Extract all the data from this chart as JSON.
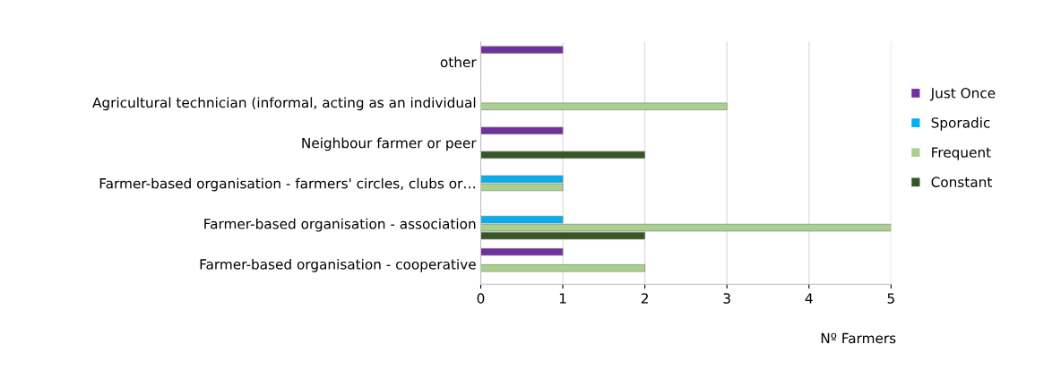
{
  "chart_data": {
    "type": "bar",
    "orientation": "horizontal",
    "xlabel": "Nº Farmers",
    "categories": [
      "other",
      "Agricultural technician (informal, acting as an individual",
      "Neighbour farmer or peer",
      "Farmer-based organisation - farmers' circles, clubs or…",
      "Farmer-based organisation - association",
      "Farmer-based organisation - cooperative"
    ],
    "series": [
      {
        "name": "Just Once",
        "color": "#7030a0",
        "values": [
          1,
          null,
          1,
          null,
          null,
          1
        ]
      },
      {
        "name": "Sporadic",
        "color": "#00b0f0",
        "values": [
          null,
          null,
          null,
          1,
          1,
          null
        ]
      },
      {
        "name": "Frequent",
        "color": "#a9d18e",
        "values": [
          null,
          3,
          null,
          1,
          5,
          2
        ]
      },
      {
        "name": "Constant",
        "color": "#375623",
        "values": [
          null,
          null,
          2,
          null,
          2,
          null
        ]
      }
    ],
    "xlim": [
      0,
      5
    ],
    "xticks": [
      0,
      1,
      2,
      3,
      4,
      5
    ],
    "grid": "x",
    "legend": "right"
  }
}
